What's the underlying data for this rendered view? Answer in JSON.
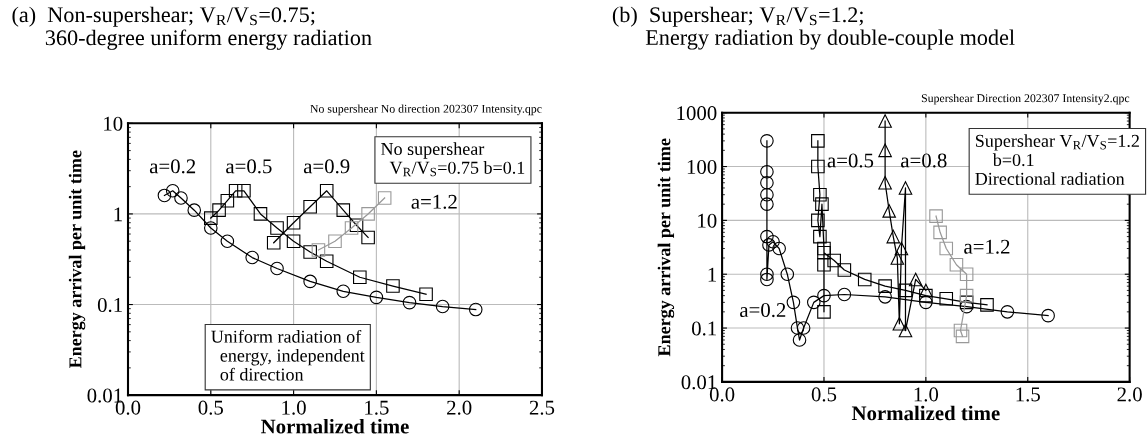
{
  "chart_data": [
    {
      "type": "line",
      "title": "(a)  Non-supershear; V$_{R}$/V$_{S}$=0.75;\n      360-degree uniform energy radiation",
      "subtitle": "No supershear No direction 202307 Intensity.qpc",
      "xlabel": "Normalized time",
      "ylabel": "Energy arrival per unit time",
      "log": "y",
      "grid": true,
      "legend": false,
      "xlim": [
        0,
        2.5
      ],
      "xticks": [
        {
          "value": 0,
          "label": "0.0"
        },
        {
          "value": 0.5,
          "label": "0.5"
        },
        {
          "value": 1,
          "label": "1.0"
        },
        {
          "value": 1.5,
          "label": "1.5"
        },
        {
          "value": 2,
          "label": "2.0"
        },
        {
          "value": 2.5,
          "label": "2.5"
        }
      ],
      "ylim": [
        0.01,
        10
      ],
      "yticks": [
        0.01,
        0.1,
        1,
        10
      ],
      "series": [
        {
          "name": "a=0.2",
          "color": "#000000",
          "marker": "circle",
          "x": [
            0.22,
            0.27,
            0.32,
            0.4,
            0.5,
            0.6,
            0.75,
            0.9,
            1.1,
            1.3,
            1.5,
            1.7,
            1.9,
            2.1
          ],
          "values": [
            1.6,
            1.8,
            1.5,
            1.1,
            0.7,
            0.5,
            0.33,
            0.25,
            0.18,
            0.14,
            0.12,
            0.105,
            0.095,
            0.088
          ]
        },
        {
          "name": "a=0.5",
          "color": "#000000",
          "marker": "square",
          "x": [
            0.5,
            0.55,
            0.6,
            0.65,
            0.7,
            0.8,
            0.9,
            1.0,
            1.1,
            1.2,
            1.4,
            1.6,
            1.8
          ],
          "values": [
            0.9,
            1.1,
            1.4,
            1.8,
            1.8,
            1.0,
            0.7,
            0.5,
            0.38,
            0.3,
            0.2,
            0.16,
            0.13
          ]
        },
        {
          "name": "a=0.9",
          "color": "#000000",
          "marker": "square",
          "x": [
            0.88,
            1.0,
            1.1,
            1.2,
            1.3,
            1.38,
            1.45
          ],
          "values": [
            0.48,
            0.8,
            1.2,
            1.8,
            1.1,
            0.75,
            0.55
          ]
        },
        {
          "name": "a=1.2",
          "color": "#999999",
          "marker": "square",
          "x": [
            1.15,
            1.25,
            1.35,
            1.45,
            1.55
          ],
          "values": [
            0.4,
            0.5,
            0.7,
            1.0,
            1.5
          ]
        }
      ],
      "annotations": [
        "No supershear\n  V$_{R}$/V$_{S}$=0.75 b=0.1",
        "Uniform radiation of\n  energy, independent\n  of direction"
      ]
    },
    {
      "type": "line",
      "title": "(b)  Supershear; V$_{R}$/V$_{S}$=1.2;\n      Energy radiation by double-couple model",
      "subtitle": "Supershear Direction 202307 Intensity2.qpc",
      "xlabel": "Normalized time",
      "ylabel": "Energy arrival per unit time",
      "log": "y",
      "grid": true,
      "legend": false,
      "xlim": [
        0,
        2
      ],
      "xticks": [
        {
          "value": 0,
          "label": "0.0"
        },
        {
          "value": 0.5,
          "label": "0.5"
        },
        {
          "value": 1,
          "label": "1.0"
        },
        {
          "value": 1.5,
          "label": "1.5"
        },
        {
          "value": 2,
          "label": "2.0"
        }
      ],
      "ylim": [
        0.01,
        1000
      ],
      "yticks": [
        0.01,
        0.1,
        1,
        10,
        100,
        1000
      ],
      "series": [
        {
          "name": "a=0.2",
          "color": "#000000",
          "marker": "circle",
          "x": [
            0.22,
            0.22,
            0.22,
            0.22,
            0.22,
            0.22,
            0.22,
            0.22,
            0.23,
            0.25,
            0.28,
            0.32,
            0.35,
            0.37,
            0.38,
            0.4,
            0.45,
            0.5,
            0.6,
            0.8,
            1.0,
            1.2,
            1.4,
            1.6
          ],
          "values": [
            300,
            80,
            50,
            30,
            20,
            5,
            1,
            0.8,
            3.5,
            4,
            3,
            1,
            0.3,
            0.1,
            0.06,
            0.1,
            0.3,
            0.4,
            0.42,
            0.38,
            0.3,
            0.25,
            0.2,
            0.17
          ]
        },
        {
          "name": "a=0.5",
          "color": "#000000",
          "marker": "square",
          "x": [
            0.47,
            0.47,
            0.48,
            0.47,
            0.48,
            0.49,
            0.5,
            0.5,
            0.5,
            0.5,
            0.55,
            0.6,
            0.7,
            0.8,
            0.9,
            1.0,
            1.1,
            1.2,
            1.3
          ],
          "values": [
            300,
            100,
            30,
            10,
            5,
            20,
            3,
            1.5,
            0.2,
            2.5,
            1.8,
            1.2,
            0.8,
            0.6,
            0.5,
            0.4,
            0.35,
            0.3,
            0.27
          ]
        },
        {
          "name": "a=0.8",
          "color": "#000000",
          "marker": "triangle",
          "x": [
            0.8,
            0.8,
            0.8,
            0.82,
            0.84,
            0.86,
            0.87,
            0.88,
            0.9,
            0.9,
            0.95,
            1.0
          ],
          "values": [
            700,
            200,
            50,
            15,
            5,
            2,
            0.12,
            3,
            40,
            0.09,
            0.8,
            0.5
          ]
        },
        {
          "name": "a=1.2",
          "color": "#999999",
          "marker": "square",
          "x": [
            1.05,
            1.07,
            1.1,
            1.15,
            1.2,
            1.2,
            1.17,
            1.18
          ],
          "values": [
            12,
            6,
            3,
            1.5,
            1,
            0.4,
            0.09,
            0.07
          ]
        }
      ],
      "annotations": [
        "Supershear V$_{R}$/V$_{S}$=1.2\n    b=0.1\nDirectional radiation"
      ]
    }
  ]
}
